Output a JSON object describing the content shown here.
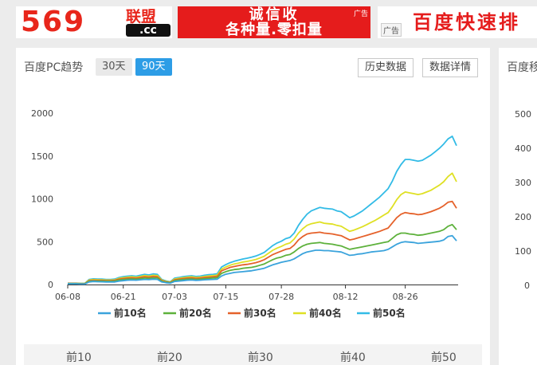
{
  "ads": {
    "ad1_number": "569",
    "ad1_brand": "联盟",
    "ad1_domain": ".cc",
    "ad2_line1": "诚信收",
    "ad2_line2": "各种量.零扣量",
    "ad2_tag": "广告",
    "ad3_tag": "广告",
    "ad3_text": "百度快速排"
  },
  "card": {
    "title": "百度PC趋势",
    "range_30": "30天",
    "range_90": "90天",
    "history_button": "历史数据",
    "detail_button": "数据详情",
    "tabs": [
      "前10",
      "前20",
      "前30",
      "前40",
      "前50"
    ]
  },
  "card2": {
    "title": "百度移",
    "ticks": [
      "500",
      "400",
      "300",
      "200",
      "100",
      "0"
    ]
  },
  "chart_data": {
    "type": "line",
    "title": "",
    "xlabel": "",
    "ylabel": "",
    "ylim": [
      0,
      2000
    ],
    "yticks": [
      0,
      500,
      1000,
      1500,
      2000
    ],
    "xtick_labels": [
      "06-08",
      "06-21",
      "07-03",
      "07-15",
      "07-28",
      "08-12",
      "08-26"
    ],
    "xtick_index": [
      0,
      13,
      25,
      37,
      50,
      65,
      79
    ],
    "grid": false,
    "legend_position": "bottom",
    "series": [
      {
        "name": "前10名",
        "color": "#3aa3dc",
        "values": [
          8,
          8,
          8,
          6,
          6,
          30,
          35,
          33,
          32,
          30,
          30,
          30,
          40,
          45,
          50,
          52,
          50,
          55,
          60,
          58,
          62,
          60,
          30,
          20,
          15,
          35,
          40,
          45,
          50,
          52,
          48,
          50,
          55,
          58,
          60,
          62,
          100,
          120,
          130,
          140,
          145,
          150,
          155,
          160,
          170,
          180,
          190,
          210,
          230,
          245,
          260,
          270,
          280,
          300,
          330,
          360,
          380,
          390,
          400,
          400,
          395,
          395,
          390,
          385,
          380,
          360,
          340,
          345,
          355,
          360,
          370,
          380,
          385,
          390,
          395,
          410,
          440,
          470,
          490,
          500,
          495,
          490,
          480,
          485,
          490,
          495,
          500,
          505,
          520,
          560,
          570,
          510
        ]
      },
      {
        "name": "前20名",
        "color": "#5db13b",
        "values": [
          10,
          10,
          10,
          8,
          8,
          38,
          42,
          40,
          40,
          38,
          38,
          40,
          52,
          58,
          62,
          65,
          62,
          68,
          75,
          72,
          78,
          76,
          38,
          26,
          20,
          45,
          52,
          58,
          62,
          65,
          60,
          62,
          68,
          72,
          76,
          80,
          130,
          150,
          165,
          175,
          180,
          190,
          195,
          200,
          210,
          225,
          240,
          265,
          290,
          310,
          320,
          340,
          350,
          380,
          420,
          450,
          470,
          480,
          485,
          490,
          480,
          475,
          470,
          460,
          450,
          430,
          410,
          420,
          430,
          440,
          450,
          460,
          470,
          480,
          490,
          500,
          540,
          580,
          600,
          600,
          590,
          585,
          575,
          580,
          590,
          600,
          610,
          620,
          640,
          680,
          700,
          640
        ]
      },
      {
        "name": "前30名",
        "color": "#e5612a",
        "values": [
          12,
          12,
          12,
          10,
          10,
          45,
          50,
          48,
          48,
          45,
          45,
          48,
          62,
          70,
          75,
          78,
          74,
          82,
          90,
          86,
          94,
          90,
          46,
          32,
          24,
          55,
          62,
          70,
          75,
          78,
          72,
          75,
          82,
          86,
          90,
          96,
          160,
          180,
          200,
          210,
          220,
          230,
          235,
          245,
          255,
          270,
          290,
          320,
          350,
          370,
          390,
          410,
          420,
          460,
          520,
          560,
          590,
          600,
          605,
          610,
          600,
          595,
          590,
          580,
          570,
          545,
          520,
          530,
          545,
          560,
          575,
          590,
          605,
          620,
          640,
          660,
          720,
          780,
          820,
          840,
          830,
          825,
          815,
          820,
          835,
          850,
          870,
          890,
          920,
          960,
          970,
          890
        ]
      },
      {
        "name": "前40名",
        "color": "#dfe024",
        "values": [
          14,
          14,
          14,
          12,
          12,
          52,
          58,
          56,
          55,
          52,
          52,
          55,
          72,
          80,
          86,
          90,
          85,
          94,
          104,
          98,
          108,
          104,
          52,
          36,
          28,
          64,
          72,
          80,
          86,
          90,
          82,
          86,
          94,
          100,
          104,
          110,
          180,
          205,
          225,
          240,
          250,
          262,
          270,
          280,
          292,
          310,
          330,
          365,
          400,
          425,
          445,
          470,
          485,
          530,
          600,
          650,
          690,
          710,
          720,
          730,
          715,
          710,
          705,
          690,
          680,
          650,
          620,
          635,
          655,
          675,
          700,
          725,
          750,
          780,
          810,
          840,
          910,
          990,
          1050,
          1080,
          1070,
          1060,
          1050,
          1060,
          1080,
          1100,
          1130,
          1160,
          1200,
          1260,
          1300,
          1200
        ]
      },
      {
        "name": "前50名",
        "color": "#32bbe6",
        "values": [
          16,
          16,
          16,
          14,
          14,
          60,
          66,
          64,
          63,
          60,
          60,
          63,
          82,
          92,
          98,
          102,
          97,
          108,
          118,
          112,
          124,
          118,
          60,
          42,
          32,
          74,
          82,
          92,
          98,
          102,
          94,
          98,
          108,
          114,
          118,
          126,
          205,
          232,
          255,
          272,
          285,
          298,
          307,
          318,
          332,
          352,
          375,
          415,
          455,
          485,
          505,
          535,
          550,
          600,
          690,
          760,
          820,
          860,
          880,
          900,
          890,
          885,
          880,
          860,
          850,
          815,
          780,
          800,
          830,
          860,
          900,
          940,
          980,
          1020,
          1070,
          1120,
          1210,
          1320,
          1400,
          1460,
          1460,
          1450,
          1440,
          1450,
          1480,
          1510,
          1550,
          1590,
          1640,
          1700,
          1730,
          1620
        ]
      }
    ]
  }
}
